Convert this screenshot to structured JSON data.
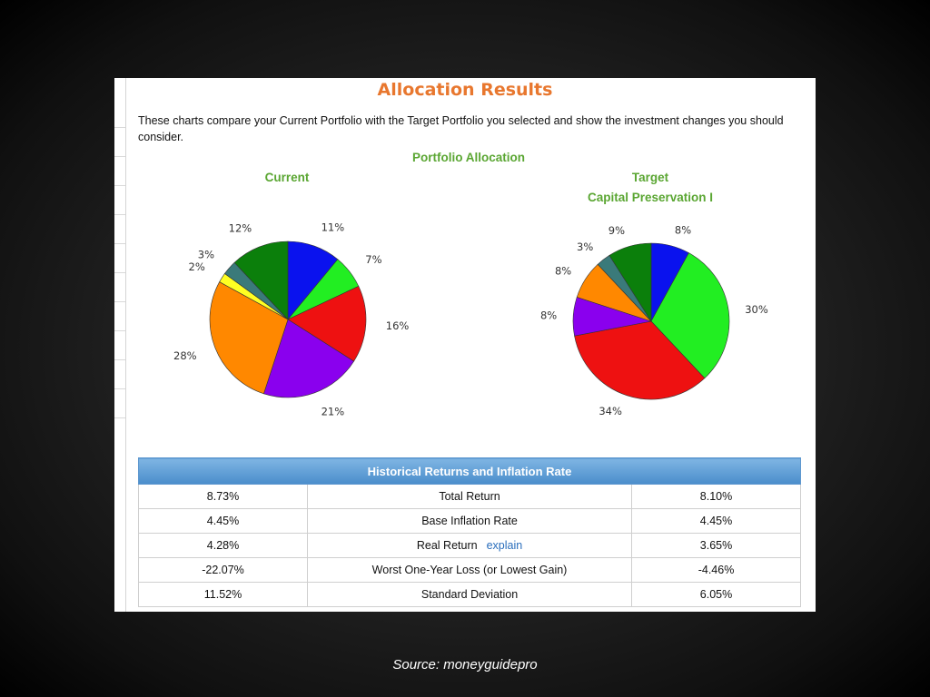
{
  "page": {
    "title": "Allocation Results",
    "intro": "These charts compare your Current Portfolio with the Target Portfolio you selected and show the investment changes you should consider.",
    "section_title": "Portfolio Allocation",
    "current_label": "Current",
    "target_label": "Target",
    "target_name": "Capital Preservation I",
    "source": "Source: moneyguidepro"
  },
  "table": {
    "header": "Historical Returns and Inflation Rate",
    "rows": [
      {
        "current": "8.73%",
        "label": "Total Return",
        "target": "8.10%"
      },
      {
        "current": "4.45%",
        "label": "Base Inflation Rate",
        "target": "4.45%"
      },
      {
        "current": "4.28%",
        "label": "Real Return",
        "link": "explain",
        "target": "3.65%"
      },
      {
        "current": "-22.07%",
        "label": "Worst One-Year Loss (or Lowest Gain)",
        "target": "-4.46%"
      },
      {
        "current": "11.52%",
        "label": "Standard Deviation",
        "target": "6.05%"
      }
    ]
  },
  "chart_data": [
    {
      "type": "pie",
      "title": "Current",
      "values": [
        11,
        7,
        16,
        21,
        28,
        2,
        3,
        12
      ],
      "labels": [
        "11%",
        "7%",
        "16%",
        "21%",
        "28%",
        "2%",
        "3%",
        "12%"
      ],
      "colors": [
        "#0a12ee",
        "#22ee22",
        "#ee1111",
        "#8a00ee",
        "#ff8800",
        "#ffff22",
        "#3a7a7a",
        "#0b7f0b"
      ]
    },
    {
      "type": "pie",
      "title": "Target",
      "subtitle": "Capital Preservation I",
      "values": [
        8,
        30,
        34,
        8,
        8,
        3,
        9
      ],
      "labels": [
        "8%",
        "30%",
        "34%",
        "8%",
        "8%",
        "3%",
        "9%"
      ],
      "colors": [
        "#0a12ee",
        "#22ee22",
        "#ee1111",
        "#8a00ee",
        "#ff8800",
        "#3a7a7a",
        "#0b7f0b"
      ]
    }
  ]
}
